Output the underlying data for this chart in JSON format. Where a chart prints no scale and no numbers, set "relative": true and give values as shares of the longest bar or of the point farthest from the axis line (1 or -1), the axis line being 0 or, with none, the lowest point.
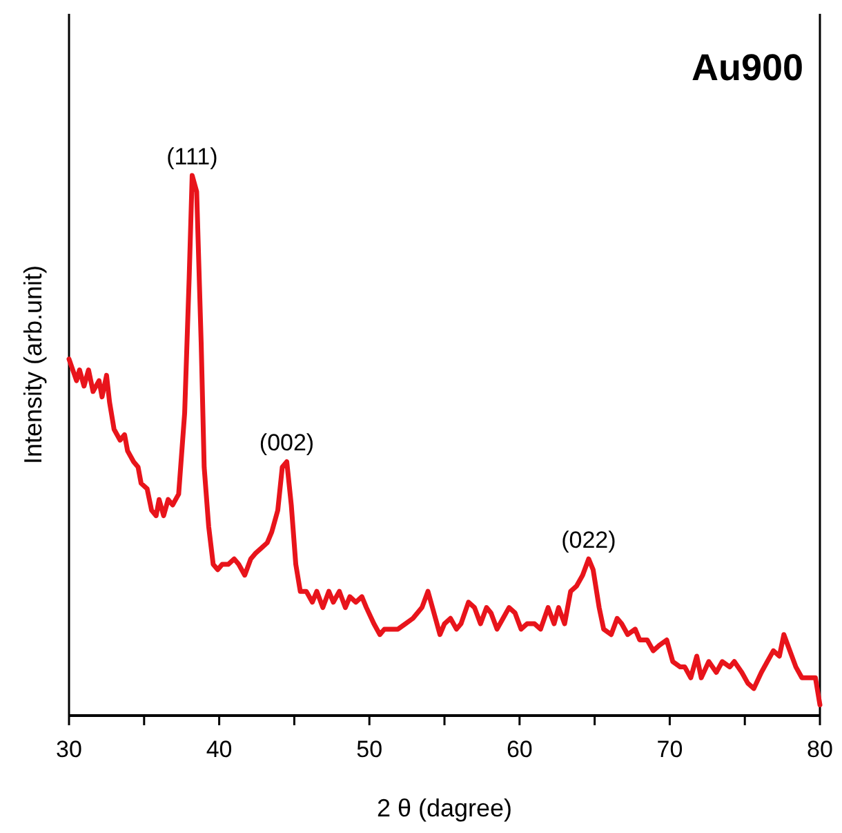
{
  "chart_data": {
    "type": "line",
    "title": "Au900",
    "xlabel": "2 θ  (dagree)",
    "ylabel": "Intensity (arb.unit)",
    "relative": true,
    "xlim": [
      30,
      80
    ],
    "xticks": [
      30,
      {
        "value": 35,
        "label": null
      },
      40,
      {
        "value": 45,
        "label": null
      },
      50,
      {
        "value": 55,
        "label": null
      },
      60,
      {
        "value": 65,
        "label": null
      },
      70,
      {
        "value": 75,
        "label": null
      },
      80
    ],
    "annotations": [
      {
        "text": "(111)",
        "x": 38.2,
        "y": 1.0
      },
      {
        "text": "(002)",
        "x": 44.5,
        "y": 0.47
      },
      {
        "text": "(022)",
        "x": 64.6,
        "y": 0.29
      }
    ],
    "series": [
      {
        "color": "#e8141b",
        "x": [
          30,
          30.5,
          30.7,
          31.0,
          31.3,
          31.6,
          32.0,
          32.2,
          32.5,
          32.7,
          33.0,
          33.4,
          33.7,
          33.9,
          34.3,
          34.6,
          34.8,
          35.2,
          35.5,
          35.8,
          36.0,
          36.3,
          36.6,
          36.9,
          37.3,
          37.7,
          38.0,
          38.2,
          38.5,
          38.8,
          39.0,
          39.3,
          39.6,
          39.9,
          40.2,
          40.6,
          41.0,
          41.3,
          41.7,
          42.1,
          42.4,
          42.8,
          43.2,
          43.5,
          43.9,
          44.2,
          44.5,
          44.8,
          45.1,
          45.4,
          45.8,
          46.2,
          46.5,
          46.9,
          47.3,
          47.6,
          48.0,
          48.4,
          48.7,
          49.1,
          49.5,
          49.8,
          50.3,
          50.7,
          51.0,
          51.5,
          51.9,
          52.4,
          52.9,
          53.5,
          53.9,
          54.3,
          54.7,
          55.0,
          55.4,
          55.8,
          56.1,
          56.6,
          57.0,
          57.4,
          57.8,
          58.1,
          58.5,
          58.9,
          59.3,
          59.7,
          60.1,
          60.5,
          61.0,
          61.4,
          61.9,
          62.3,
          62.6,
          63.0,
          63.4,
          63.8,
          64.2,
          64.6,
          64.9,
          65.3,
          65.6,
          66.1,
          66.5,
          66.8,
          67.2,
          67.7,
          68.0,
          68.5,
          68.9,
          69.3,
          69.8,
          70.2,
          70.7,
          71.0,
          71.4,
          71.8,
          72.1,
          72.6,
          73.1,
          73.5,
          74.0,
          74.3,
          74.8,
          75.2,
          75.6,
          76.1,
          76.5,
          76.9,
          77.3,
          77.6,
          78.0,
          78.4,
          78.8,
          79.3,
          79.7,
          80.0
        ],
        "values": [
          0.66,
          0.62,
          0.64,
          0.61,
          0.64,
          0.6,
          0.62,
          0.59,
          0.63,
          0.58,
          0.53,
          0.51,
          0.52,
          0.49,
          0.47,
          0.46,
          0.43,
          0.42,
          0.38,
          0.37,
          0.4,
          0.37,
          0.4,
          0.39,
          0.41,
          0.56,
          0.81,
          1.0,
          0.97,
          0.69,
          0.46,
          0.35,
          0.28,
          0.27,
          0.28,
          0.28,
          0.29,
          0.28,
          0.26,
          0.29,
          0.3,
          0.31,
          0.32,
          0.34,
          0.38,
          0.46,
          0.47,
          0.39,
          0.28,
          0.23,
          0.23,
          0.21,
          0.23,
          0.2,
          0.23,
          0.21,
          0.23,
          0.2,
          0.22,
          0.21,
          0.22,
          0.2,
          0.17,
          0.15,
          0.16,
          0.16,
          0.16,
          0.17,
          0.18,
          0.2,
          0.23,
          0.19,
          0.15,
          0.17,
          0.18,
          0.16,
          0.17,
          0.21,
          0.2,
          0.17,
          0.2,
          0.19,
          0.16,
          0.18,
          0.2,
          0.19,
          0.16,
          0.17,
          0.17,
          0.16,
          0.2,
          0.17,
          0.2,
          0.17,
          0.23,
          0.24,
          0.26,
          0.29,
          0.27,
          0.2,
          0.16,
          0.15,
          0.18,
          0.17,
          0.15,
          0.16,
          0.14,
          0.14,
          0.12,
          0.13,
          0.14,
          0.1,
          0.09,
          0.09,
          0.07,
          0.11,
          0.07,
          0.1,
          0.08,
          0.1,
          0.09,
          0.1,
          0.08,
          0.06,
          0.05,
          0.08,
          0.1,
          0.12,
          0.11,
          0.15,
          0.12,
          0.09,
          0.07,
          0.07,
          0.07,
          0.02
        ]
      }
    ]
  }
}
